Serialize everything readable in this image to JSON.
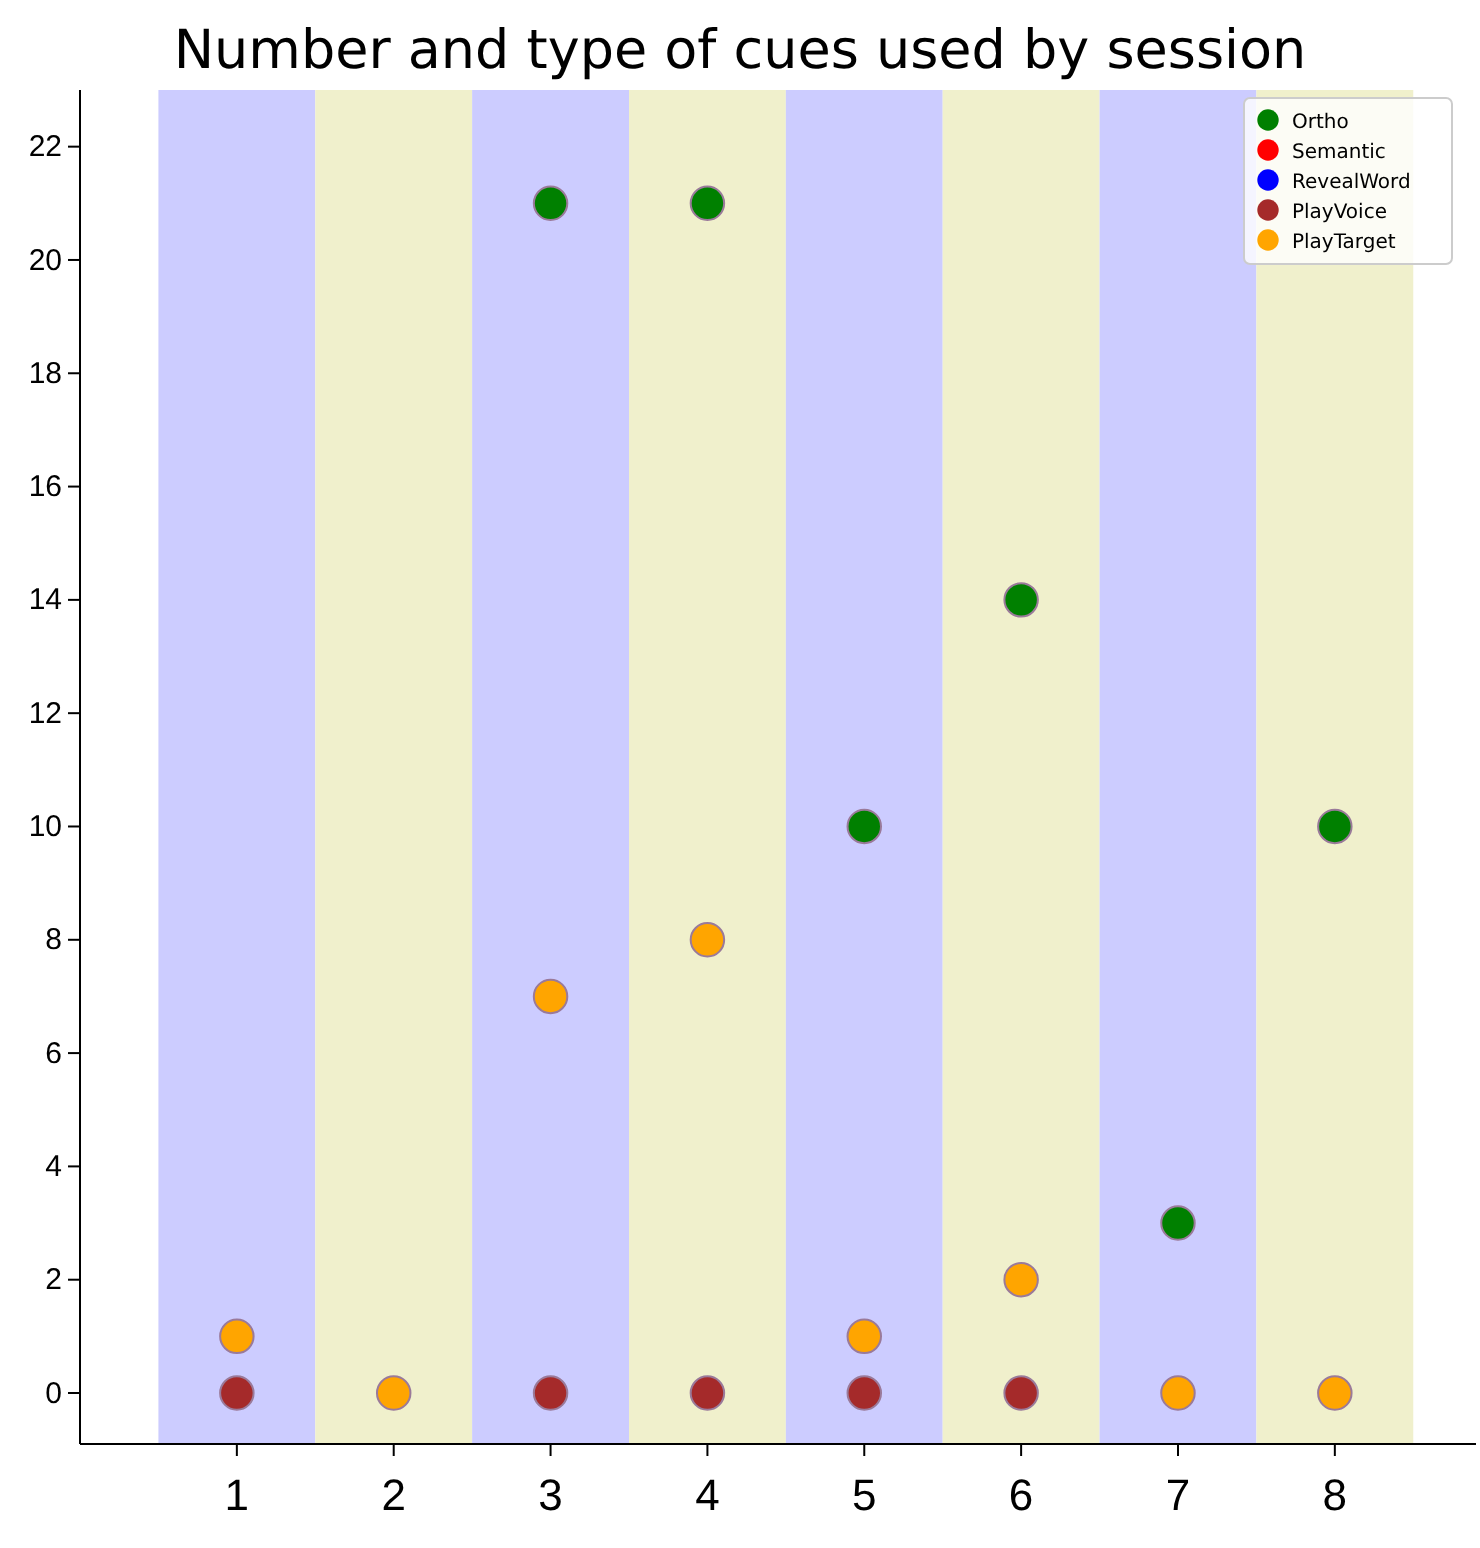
{
  "chart_data": {
    "type": "scatter",
    "title": "Number and type of cues used by session",
    "x": [
      1,
      2,
      3,
      4,
      5,
      6,
      7,
      8
    ],
    "series": [
      {
        "name": "Ortho",
        "color": "#008000",
        "values": [
          null,
          null,
          21,
          21,
          10,
          14,
          3,
          10
        ]
      },
      {
        "name": "Semantic",
        "color": "#ff0000",
        "values": [
          null,
          null,
          null,
          null,
          null,
          null,
          null,
          null
        ]
      },
      {
        "name": "RevealWord",
        "color": "#0000ff",
        "values": [
          null,
          null,
          null,
          null,
          null,
          null,
          null,
          null
        ]
      },
      {
        "name": "PlayVoice",
        "color": "#a52a2a",
        "values": [
          0,
          null,
          0,
          0,
          0,
          0,
          null,
          null
        ]
      },
      {
        "name": "PlayTarget",
        "color": "#ffa500",
        "values": [
          1,
          0,
          7,
          8,
          1,
          2,
          0,
          0
        ]
      }
    ],
    "bands": [
      {
        "axis": "x",
        "from": 0.5,
        "to": 1.5,
        "color": "#ccccff"
      },
      {
        "axis": "x",
        "from": 1.5,
        "to": 2.5,
        "color": "#f0f0cc"
      },
      {
        "axis": "x",
        "from": 2.5,
        "to": 3.5,
        "color": "#ccccff"
      },
      {
        "axis": "x",
        "from": 3.5,
        "to": 4.5,
        "color": "#f0f0cc"
      },
      {
        "axis": "x",
        "from": 4.5,
        "to": 5.5,
        "color": "#ccccff"
      },
      {
        "axis": "x",
        "from": 5.5,
        "to": 6.5,
        "color": "#f0f0cc"
      },
      {
        "axis": "x",
        "from": 6.5,
        "to": 7.5,
        "color": "#ccccff"
      },
      {
        "axis": "x",
        "from": 7.5,
        "to": 8.5,
        "color": "#f0f0cc"
      }
    ],
    "xlim": [
      0,
      8.9
    ],
    "xticks": [
      1,
      2,
      3,
      4,
      5,
      6,
      7,
      8
    ],
    "ylim": [
      -0.9,
      23
    ],
    "yticks": [
      0,
      2,
      4,
      6,
      8,
      10,
      12,
      14,
      16,
      18,
      20,
      22
    ],
    "marker": "circle",
    "legend": "top right",
    "grid": false
  }
}
